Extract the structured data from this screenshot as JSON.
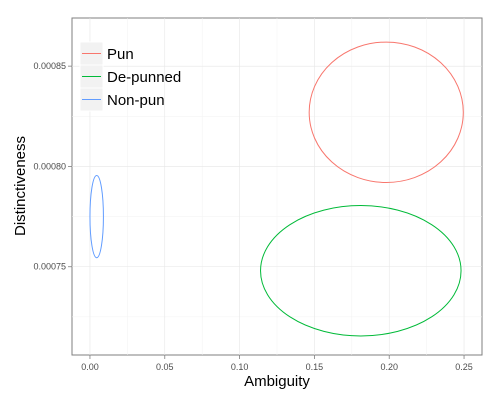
{
  "chart_data": {
    "type": "scatter",
    "title": "",
    "xlabel": "Ambiguity",
    "ylabel": "Distinctiveness",
    "xlim": [
      -0.012,
      0.262
    ],
    "ylim": [
      0.000706,
      0.000874
    ],
    "x_ticks": [
      {
        "value": 0.0,
        "label": "0.00"
      },
      {
        "value": 0.05,
        "label": "0.05"
      },
      {
        "value": 0.1,
        "label": "0.10"
      },
      {
        "value": 0.15,
        "label": "0.15"
      },
      {
        "value": 0.2,
        "label": "0.20"
      },
      {
        "value": 0.25,
        "label": "0.25"
      }
    ],
    "y_ticks": [
      {
        "value": 0.00075,
        "label": "0.00075"
      },
      {
        "value": 0.0008,
        "label": "0.00080"
      },
      {
        "value": 0.00085,
        "label": "0.00085"
      }
    ],
    "grid": true,
    "legend_position": "top-left",
    "series": [
      {
        "name": "Pun",
        "color": "#F8766D",
        "shape": "ellipse",
        "center": [
          0.198,
          0.000827
        ],
        "x_range": [
          0.146,
          0.249
        ],
        "y_range": [
          0.000792,
          0.000862
        ]
      },
      {
        "name": "De-punned",
        "color": "#00BA38",
        "shape": "ellipse",
        "center": [
          0.181,
          0.000748
        ],
        "x_range": [
          0.115,
          0.249
        ],
        "y_range": [
          0.000716,
          0.000781
        ]
      },
      {
        "name": "Non-pun",
        "color": "#619CFF",
        "shape": "ellipse",
        "center": [
          0.0045,
          0.000775
        ],
        "x_range": [
          0.0,
          0.009
        ],
        "y_range": [
          0.000755,
          0.000796
        ]
      }
    ]
  }
}
